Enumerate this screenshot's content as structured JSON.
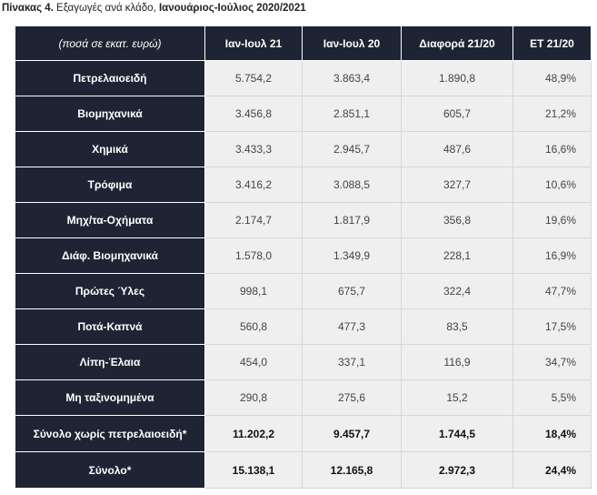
{
  "caption": {
    "prefix": "Πίνακας 4.",
    "middle": " Εξαγωγές ανά κλάδο, ",
    "suffix": "Ιανουάριος-Ιούλιος 2020/2021"
  },
  "table": {
    "headers": [
      "(ποσά σε εκατ. ευρώ)",
      "Ιαν-Ιουλ 21",
      "Ιαν-Ιουλ 20",
      "Διαφορά 21/20",
      "ΕΤ 21/20"
    ],
    "rows": [
      {
        "label": "Πετρελαιοειδή",
        "v21": "5.754,2",
        "v20": "3.863,4",
        "diff": "1.890,8",
        "pct": "48,9%"
      },
      {
        "label": "Βιομηχανικά",
        "v21": "3.456,8",
        "v20": "2.851,1",
        "diff": "605,7",
        "pct": "21,2%"
      },
      {
        "label": "Χημικά",
        "v21": "3.433,3",
        "v20": "2.945,7",
        "diff": "487,6",
        "pct": "16,6%"
      },
      {
        "label": "Τρόφιμα",
        "v21": "3.416,2",
        "v20": "3.088,5",
        "diff": "327,7",
        "pct": "10,6%"
      },
      {
        "label": "Μηχ/τα-Οχήματα",
        "v21": "2.174,7",
        "v20": "1.817,9",
        "diff": "356,8",
        "pct": "19,6%"
      },
      {
        "label": "Διάφ. Βιομηχανικά",
        "v21": "1.578,0",
        "v20": "1.349,9",
        "diff": "228,1",
        "pct": "16,9%"
      },
      {
        "label": "Πρώτες Ύλες",
        "v21": "998,1",
        "v20": "675,7",
        "diff": "322,4",
        "pct": "47,7%"
      },
      {
        "label": "Ποτά-Καπνά",
        "v21": "560,8",
        "v20": "477,3",
        "diff": "83,5",
        "pct": "17,5%"
      },
      {
        "label": "Λίπη-Έλαια",
        "v21": "454,0",
        "v20": "337,1",
        "diff": "116,9",
        "pct": "34,7%"
      },
      {
        "label": "Μη ταξινομημένα",
        "v21": "290,8",
        "v20": "275,6",
        "diff": "15,2",
        "pct": "5,5%"
      }
    ],
    "totals": [
      {
        "label": "Σύνολο χωρίς πετρελαιοειδή*",
        "v21": "11.202,2",
        "v20": "9.457,7",
        "diff": "1.744,5",
        "pct": "18,4%"
      },
      {
        "label": "Σύνολο*",
        "v21": "15.138,1",
        "v20": "12.165,8",
        "diff": "2.972,3",
        "pct": "24,4%"
      }
    ]
  }
}
